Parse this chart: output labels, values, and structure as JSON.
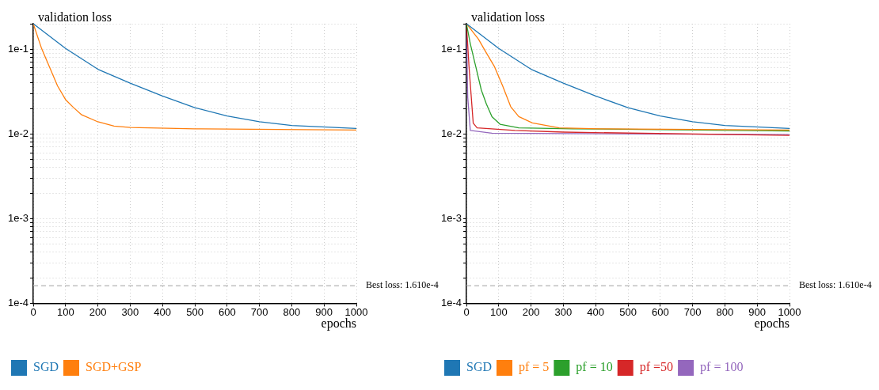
{
  "chart_data": [
    {
      "type": "line",
      "xlabel": "epochs",
      "ylabel": "validation loss",
      "log": "y",
      "grid": true,
      "legend": "bottom left",
      "marker": "none",
      "line_style": "solid",
      "xlim": [
        0,
        1000
      ],
      "xticks": [
        0,
        100,
        200,
        300,
        400,
        500,
        600,
        700,
        800,
        900,
        1000
      ],
      "ylim": [
        0.0001,
        0.2
      ],
      "yticks": [
        {
          "value": 0.0001,
          "label": "1e-4"
        },
        {
          "value": 0.0002,
          "label": null
        },
        {
          "value": 0.0003,
          "label": null
        },
        {
          "value": 0.0004,
          "label": null
        },
        {
          "value": 0.0005,
          "label": null
        },
        {
          "value": 0.0006,
          "label": null
        },
        {
          "value": 0.0007,
          "label": null
        },
        {
          "value": 0.0008,
          "label": null
        },
        {
          "value": 0.0009,
          "label": null
        },
        {
          "value": 0.001,
          "label": "1e-3"
        },
        {
          "value": 0.002,
          "label": null
        },
        {
          "value": 0.003,
          "label": null
        },
        {
          "value": 0.004,
          "label": null
        },
        {
          "value": 0.005,
          "label": null
        },
        {
          "value": 0.006,
          "label": null
        },
        {
          "value": 0.007,
          "label": null
        },
        {
          "value": 0.008,
          "label": null
        },
        {
          "value": 0.009,
          "label": null
        },
        {
          "value": 0.01,
          "label": "1e-2"
        },
        {
          "value": 0.02,
          "label": null
        },
        {
          "value": 0.03,
          "label": null
        },
        {
          "value": 0.04,
          "label": null
        },
        {
          "value": 0.05,
          "label": null
        },
        {
          "value": 0.06,
          "label": null
        },
        {
          "value": 0.07,
          "label": null
        },
        {
          "value": 0.08,
          "label": null
        },
        {
          "value": 0.09,
          "label": null
        },
        {
          "value": 0.1,
          "label": "1e-1"
        },
        {
          "value": 0.2,
          "label": null
        }
      ],
      "ref_lines": [
        {
          "axis": "y",
          "value": 0.000161,
          "color": "#c0c0c0",
          "line_style": "dashed"
        }
      ],
      "annotations": [
        "Best loss: 1.610e-4"
      ],
      "series": [
        {
          "name": "SGD",
          "color": "#1f77b4",
          "x": [
            0,
            100,
            200,
            300,
            400,
            500,
            600,
            700,
            800,
            1000
          ],
          "values": [
            0.2,
            0.102,
            0.058,
            0.0397,
            0.028,
            0.0204,
            0.0163,
            0.0139,
            0.0126,
            0.0116
          ]
        },
        {
          "name": "SGD+GSP",
          "color": "#ff7f0e",
          "x": [
            0,
            25,
            50,
            75,
            100,
            125,
            150,
            200,
            250,
            300,
            500,
            1000
          ],
          "values": [
            0.2,
            0.104,
            0.062,
            0.037,
            0.0254,
            0.0204,
            0.0168,
            0.0139,
            0.0124,
            0.0119,
            0.0115,
            0.0111
          ]
        }
      ]
    },
    {
      "type": "line",
      "xlabel": "epochs",
      "ylabel": "validation loss",
      "log": "y",
      "grid": true,
      "legend": "bottom left",
      "marker": "none",
      "line_style": "solid",
      "xlim": [
        0,
        1000
      ],
      "xticks": [
        0,
        100,
        200,
        300,
        400,
        500,
        600,
        700,
        800,
        900,
        1000
      ],
      "ylim": [
        0.0001,
        0.2
      ],
      "yticks": [
        {
          "value": 0.0001,
          "label": "1e-4"
        },
        {
          "value": 0.0002,
          "label": null
        },
        {
          "value": 0.0003,
          "label": null
        },
        {
          "value": 0.0004,
          "label": null
        },
        {
          "value": 0.0005,
          "label": null
        },
        {
          "value": 0.0006,
          "label": null
        },
        {
          "value": 0.0007,
          "label": null
        },
        {
          "value": 0.0008,
          "label": null
        },
        {
          "value": 0.0009,
          "label": null
        },
        {
          "value": 0.001,
          "label": "1e-3"
        },
        {
          "value": 0.002,
          "label": null
        },
        {
          "value": 0.003,
          "label": null
        },
        {
          "value": 0.004,
          "label": null
        },
        {
          "value": 0.005,
          "label": null
        },
        {
          "value": 0.006,
          "label": null
        },
        {
          "value": 0.007,
          "label": null
        },
        {
          "value": 0.008,
          "label": null
        },
        {
          "value": 0.009,
          "label": null
        },
        {
          "value": 0.01,
          "label": "1e-2"
        },
        {
          "value": 0.02,
          "label": null
        },
        {
          "value": 0.03,
          "label": null
        },
        {
          "value": 0.04,
          "label": null
        },
        {
          "value": 0.05,
          "label": null
        },
        {
          "value": 0.06,
          "label": null
        },
        {
          "value": 0.07,
          "label": null
        },
        {
          "value": 0.08,
          "label": null
        },
        {
          "value": 0.09,
          "label": null
        },
        {
          "value": 0.1,
          "label": "1e-1"
        },
        {
          "value": 0.2,
          "label": null
        }
      ],
      "ref_lines": [
        {
          "axis": "y",
          "value": 0.000161,
          "color": "#c0c0c0",
          "line_style": "dashed"
        }
      ],
      "annotations": [
        "Best loss: 1.610e-4"
      ],
      "series": [
        {
          "name": "SGD",
          "color": "#1f77b4",
          "x": [
            0,
            100,
            200,
            300,
            400,
            500,
            600,
            700,
            800,
            1000
          ],
          "values": [
            0.2,
            0.102,
            0.058,
            0.0397,
            0.028,
            0.0204,
            0.0163,
            0.0139,
            0.0126,
            0.0116
          ]
        },
        {
          "name": "pf = 5",
          "color": "#ff7f0e",
          "x": [
            0,
            37,
            62,
            87,
            112,
            137,
            162,
            204,
            287,
            412,
            1000
          ],
          "values": [
            0.2,
            0.132,
            0.09,
            0.062,
            0.037,
            0.021,
            0.016,
            0.0135,
            0.0118,
            0.0115,
            0.0111
          ]
        },
        {
          "name": "pf = 10",
          "color": "#2ca02c",
          "x": [
            0,
            12,
            29,
            46,
            62,
            79,
            104,
            162,
            329,
            1000
          ],
          "values": [
            0.2,
            0.116,
            0.062,
            0.033,
            0.0224,
            0.016,
            0.013,
            0.0118,
            0.0115,
            0.0108
          ]
        },
        {
          "name": "pf =50",
          "color": "#d62728",
          "x": [
            0,
            8,
            21,
            33,
            150,
            300,
            1000
          ],
          "values": [
            0.2,
            0.062,
            0.0134,
            0.0118,
            0.011,
            0.0105,
            0.0096
          ]
        },
        {
          "name": "pf = 100",
          "color": "#9467bd",
          "x": [
            0,
            4,
            12,
            79,
            1000
          ],
          "values": [
            0.2,
            0.027,
            0.011,
            0.0102,
            0.0098
          ]
        }
      ]
    }
  ]
}
